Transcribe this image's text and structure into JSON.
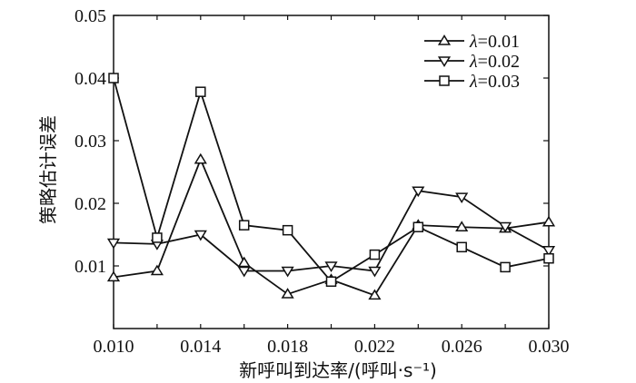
{
  "chart_data": {
    "type": "line",
    "title": "",
    "xlabel": "新呼叫到达率/(呼叫·s⁻¹)",
    "ylabel": "策略估计误差",
    "xlim": [
      0.01,
      0.03
    ],
    "ylim": [
      0.0,
      0.05
    ],
    "xticks": [
      "0.010",
      "0.014",
      "0.018",
      "0.022",
      "0.026",
      "0.030"
    ],
    "yticks": [
      "0.01",
      "0.02",
      "0.03",
      "0.04",
      "0.05"
    ],
    "x": [
      0.01,
      0.012,
      0.014,
      0.016,
      0.018,
      0.02,
      0.022,
      0.024,
      0.026,
      0.028,
      0.03
    ],
    "grid": false,
    "legend_position": "top-right",
    "series": [
      {
        "name": "λ=0.01",
        "legend_symbol": "λ",
        "legend_value": "=0.01",
        "marker": "triangle-up",
        "values": [
          0.0082,
          0.0092,
          0.027,
          0.0105,
          0.0055,
          0.0078,
          0.0053,
          0.0165,
          0.0162,
          0.016,
          0.017
        ]
      },
      {
        "name": "λ=0.02",
        "legend_symbol": "λ",
        "legend_value": "=0.02",
        "marker": "triangle-down",
        "values": [
          0.0137,
          0.0135,
          0.015,
          0.0092,
          0.0092,
          0.01,
          0.0092,
          0.022,
          0.021,
          0.0163,
          0.0125
        ]
      },
      {
        "name": "λ=0.03",
        "legend_symbol": "λ",
        "legend_value": "=0.03",
        "marker": "square",
        "values": [
          0.04,
          0.0145,
          0.0378,
          0.0165,
          0.0157,
          0.0075,
          0.0118,
          0.0162,
          0.013,
          0.0098,
          0.0112
        ]
      }
    ]
  }
}
